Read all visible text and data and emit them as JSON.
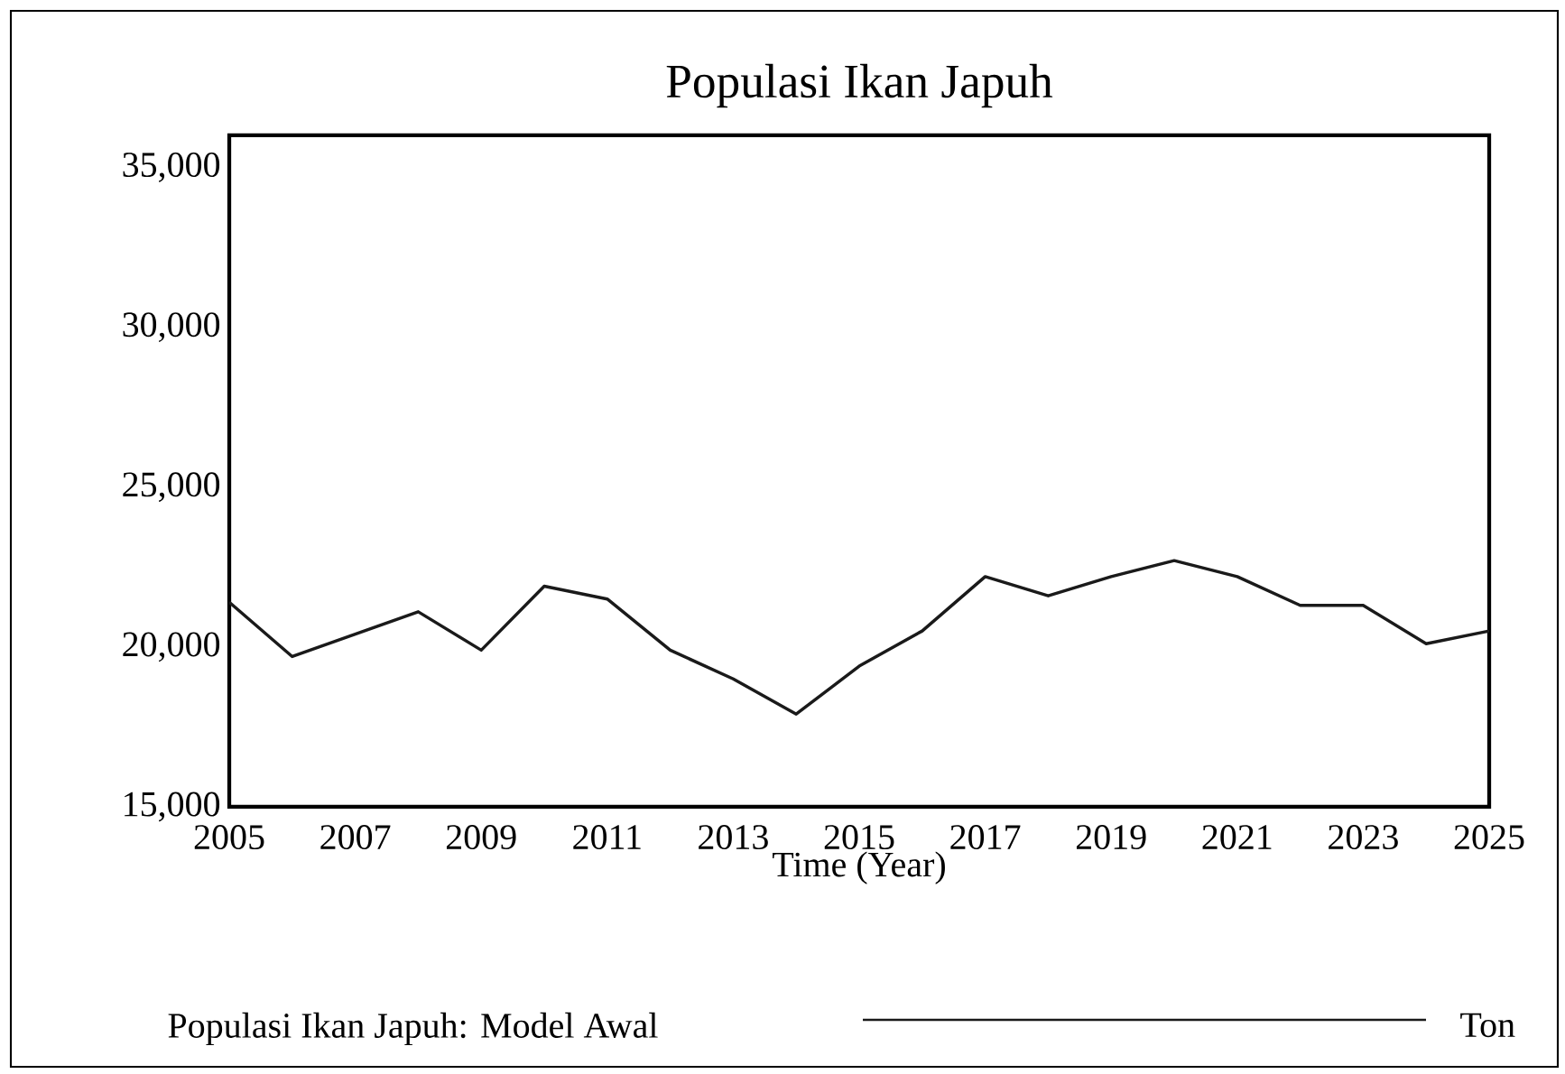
{
  "chart_data": {
    "type": "line",
    "title": "Populasi Ikan Japuh",
    "xlabel": "Time (Year)",
    "x": [
      2005,
      2006,
      2007,
      2008,
      2009,
      2010,
      2011,
      2012,
      2013,
      2014,
      2015,
      2016,
      2017,
      2018,
      2019,
      2020,
      2021,
      2022,
      2023,
      2024,
      2025
    ],
    "series": [
      {
        "name": "Populasi Ikan Japuh: Model Awal",
        "color": "#1a1a1a",
        "values": [
          21400,
          19700,
          20400,
          21100,
          19900,
          21900,
          21500,
          19900,
          19000,
          17900,
          19400,
          20500,
          22200,
          21600,
          22200,
          22700,
          22200,
          21300,
          21300,
          20100,
          20500
        ]
      }
    ],
    "xlim": [
      2005,
      2025
    ],
    "xticks": [
      2005,
      2007,
      2009,
      2011,
      2013,
      2015,
      2017,
      2019,
      2021,
      2023,
      2025
    ],
    "ylim": [
      15000,
      36000
    ],
    "yticks": [
      {
        "value": 15000,
        "label": "15,000"
      },
      {
        "value": 20000,
        "label": "20,000"
      },
      {
        "value": 25000,
        "label": "25,000"
      },
      {
        "value": 30000,
        "label": "30,000"
      },
      {
        "value": 35000,
        "label": "35,000"
      }
    ],
    "legend": "bottom",
    "grid": false,
    "marker": "none",
    "line_style": "solid",
    "annotations": [
      "Ton"
    ]
  }
}
